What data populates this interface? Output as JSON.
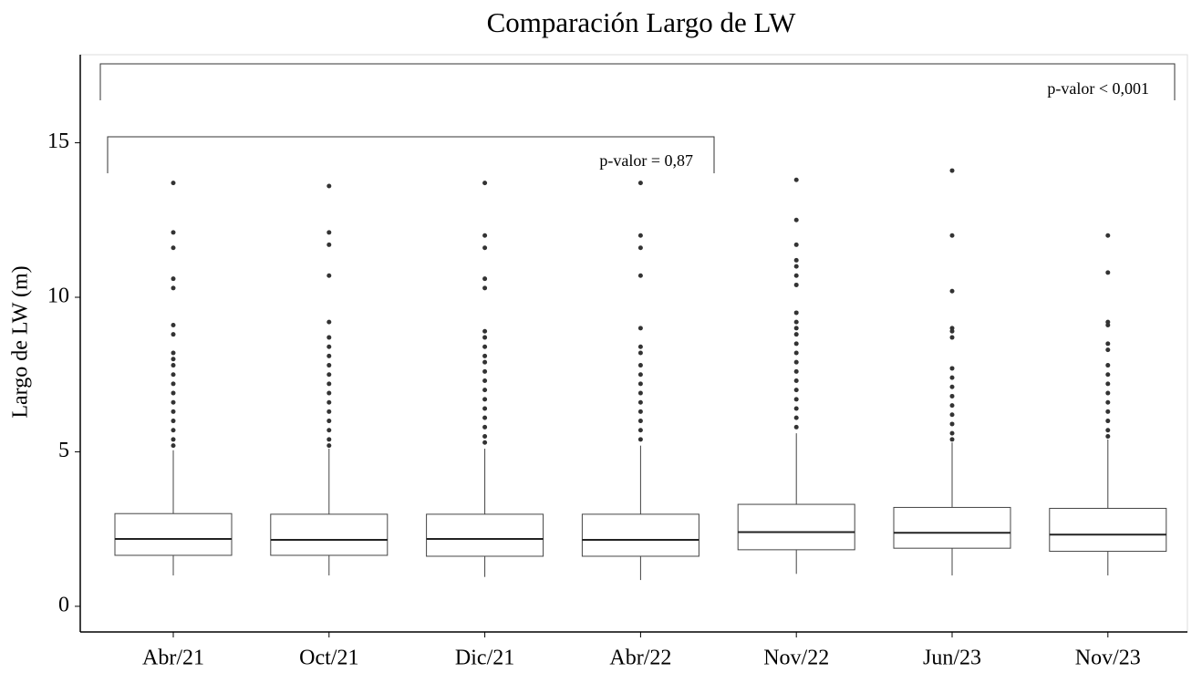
{
  "chart_data": {
    "type": "box",
    "title": "Comparación Largo de LW",
    "y_label": "Largo de LW (m)",
    "categories": [
      "Abr/21",
      "Oct/21",
      "Dic/21",
      "Abr/22",
      "Nov/22",
      "Jun/23",
      "Nov/23"
    ],
    "whisker_low": [
      1.0,
      1.0,
      0.95,
      0.85,
      1.05,
      1.0,
      1.0
    ],
    "q1": [
      1.65,
      1.65,
      1.62,
      1.62,
      1.83,
      1.88,
      1.78
    ],
    "median": [
      2.18,
      2.15,
      2.18,
      2.15,
      2.4,
      2.38,
      2.32
    ],
    "q3": [
      3.0,
      2.98,
      2.98,
      2.98,
      3.3,
      3.2,
      3.17
    ],
    "whisker_high": [
      5.05,
      5.1,
      5.1,
      5.2,
      5.6,
      5.3,
      5.4
    ],
    "outliers": [
      [
        13.7,
        12.1,
        11.6,
        10.6,
        10.3,
        9.1,
        8.8,
        8.2,
        8.0,
        7.8,
        7.5,
        7.2,
        6.9,
        6.6,
        6.3,
        6.0,
        5.7,
        5.4,
        5.2
      ],
      [
        13.6,
        12.1,
        11.7,
        10.7,
        9.2,
        8.7,
        8.4,
        8.1,
        7.8,
        7.5,
        7.2,
        6.9,
        6.6,
        6.3,
        6.0,
        5.7,
        5.4,
        5.2
      ],
      [
        13.7,
        12.0,
        11.6,
        10.6,
        10.3,
        8.9,
        8.7,
        8.4,
        8.1,
        7.9,
        7.6,
        7.3,
        7.0,
        6.7,
        6.4,
        6.1,
        5.8,
        5.5,
        5.3
      ],
      [
        13.7,
        12.0,
        11.6,
        10.7,
        9.0,
        8.4,
        8.2,
        7.8,
        7.5,
        7.2,
        6.9,
        6.6,
        6.3,
        6.0,
        5.7,
        5.4
      ],
      [
        13.8,
        12.5,
        11.7,
        11.2,
        11.0,
        10.7,
        10.4,
        9.5,
        9.2,
        9.0,
        8.8,
        8.5,
        8.2,
        7.9,
        7.6,
        7.3,
        7.0,
        6.7,
        6.4,
        6.1,
        5.8
      ],
      [
        14.1,
        12.0,
        10.2,
        9.0,
        8.9,
        8.7,
        7.7,
        7.4,
        7.1,
        6.8,
        6.5,
        6.2,
        5.9,
        5.6,
        5.4
      ],
      [
        12.0,
        10.8,
        9.2,
        9.1,
        8.5,
        8.3,
        7.8,
        7.5,
        7.2,
        6.9,
        6.6,
        6.3,
        6.0,
        5.7,
        5.5
      ]
    ],
    "annotations": [
      "p-valor < 0,001",
      "p-valor = 0,87"
    ],
    "ylim": [
      -0.83,
      17.85
    ],
    "yticks": [
      0,
      5,
      10,
      15
    ],
    "color": "#444444"
  }
}
